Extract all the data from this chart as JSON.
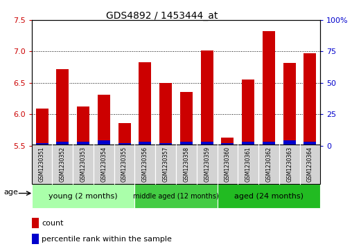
{
  "title": "GDS4892 / 1453444_at",
  "samples": [
    "GSM1230351",
    "GSM1230352",
    "GSM1230353",
    "GSM1230354",
    "GSM1230355",
    "GSM1230356",
    "GSM1230357",
    "GSM1230358",
    "GSM1230359",
    "GSM1230360",
    "GSM1230361",
    "GSM1230362",
    "GSM1230363",
    "GSM1230364"
  ],
  "count_values": [
    6.09,
    6.72,
    6.12,
    6.31,
    5.86,
    6.83,
    6.5,
    6.35,
    7.02,
    5.63,
    6.55,
    7.32,
    6.82,
    6.97
  ],
  "percentile_values": [
    2,
    3,
    3,
    4,
    2,
    3,
    2,
    3,
    3,
    2,
    3,
    3,
    4,
    3
  ],
  "ylim_left": [
    5.5,
    7.5
  ],
  "ylim_right": [
    0,
    100
  ],
  "yticks_left": [
    5.5,
    6.0,
    6.5,
    7.0,
    7.5
  ],
  "yticks_right": [
    0,
    25,
    50,
    75,
    100
  ],
  "ytick_labels_right": [
    "0",
    "25",
    "50",
    "75",
    "100%"
  ],
  "bar_color_red": "#cc0000",
  "bar_color_blue": "#0000cc",
  "groups": [
    {
      "label": "young (2 months)",
      "indices": [
        0,
        1,
        2,
        3,
        4
      ],
      "color": "#aaffaa"
    },
    {
      "label": "middle aged (12 months)",
      "indices": [
        5,
        6,
        7,
        8
      ],
      "color": "#44cc44"
    },
    {
      "label": "aged (24 months)",
      "indices": [
        9,
        10,
        11,
        12,
        13
      ],
      "color": "#22bb22"
    }
  ],
  "age_label": "age",
  "legend_count": "count",
  "legend_pct": "percentile rank within the sample",
  "right_axis_color": "#0000cc",
  "left_axis_color": "#cc0000"
}
